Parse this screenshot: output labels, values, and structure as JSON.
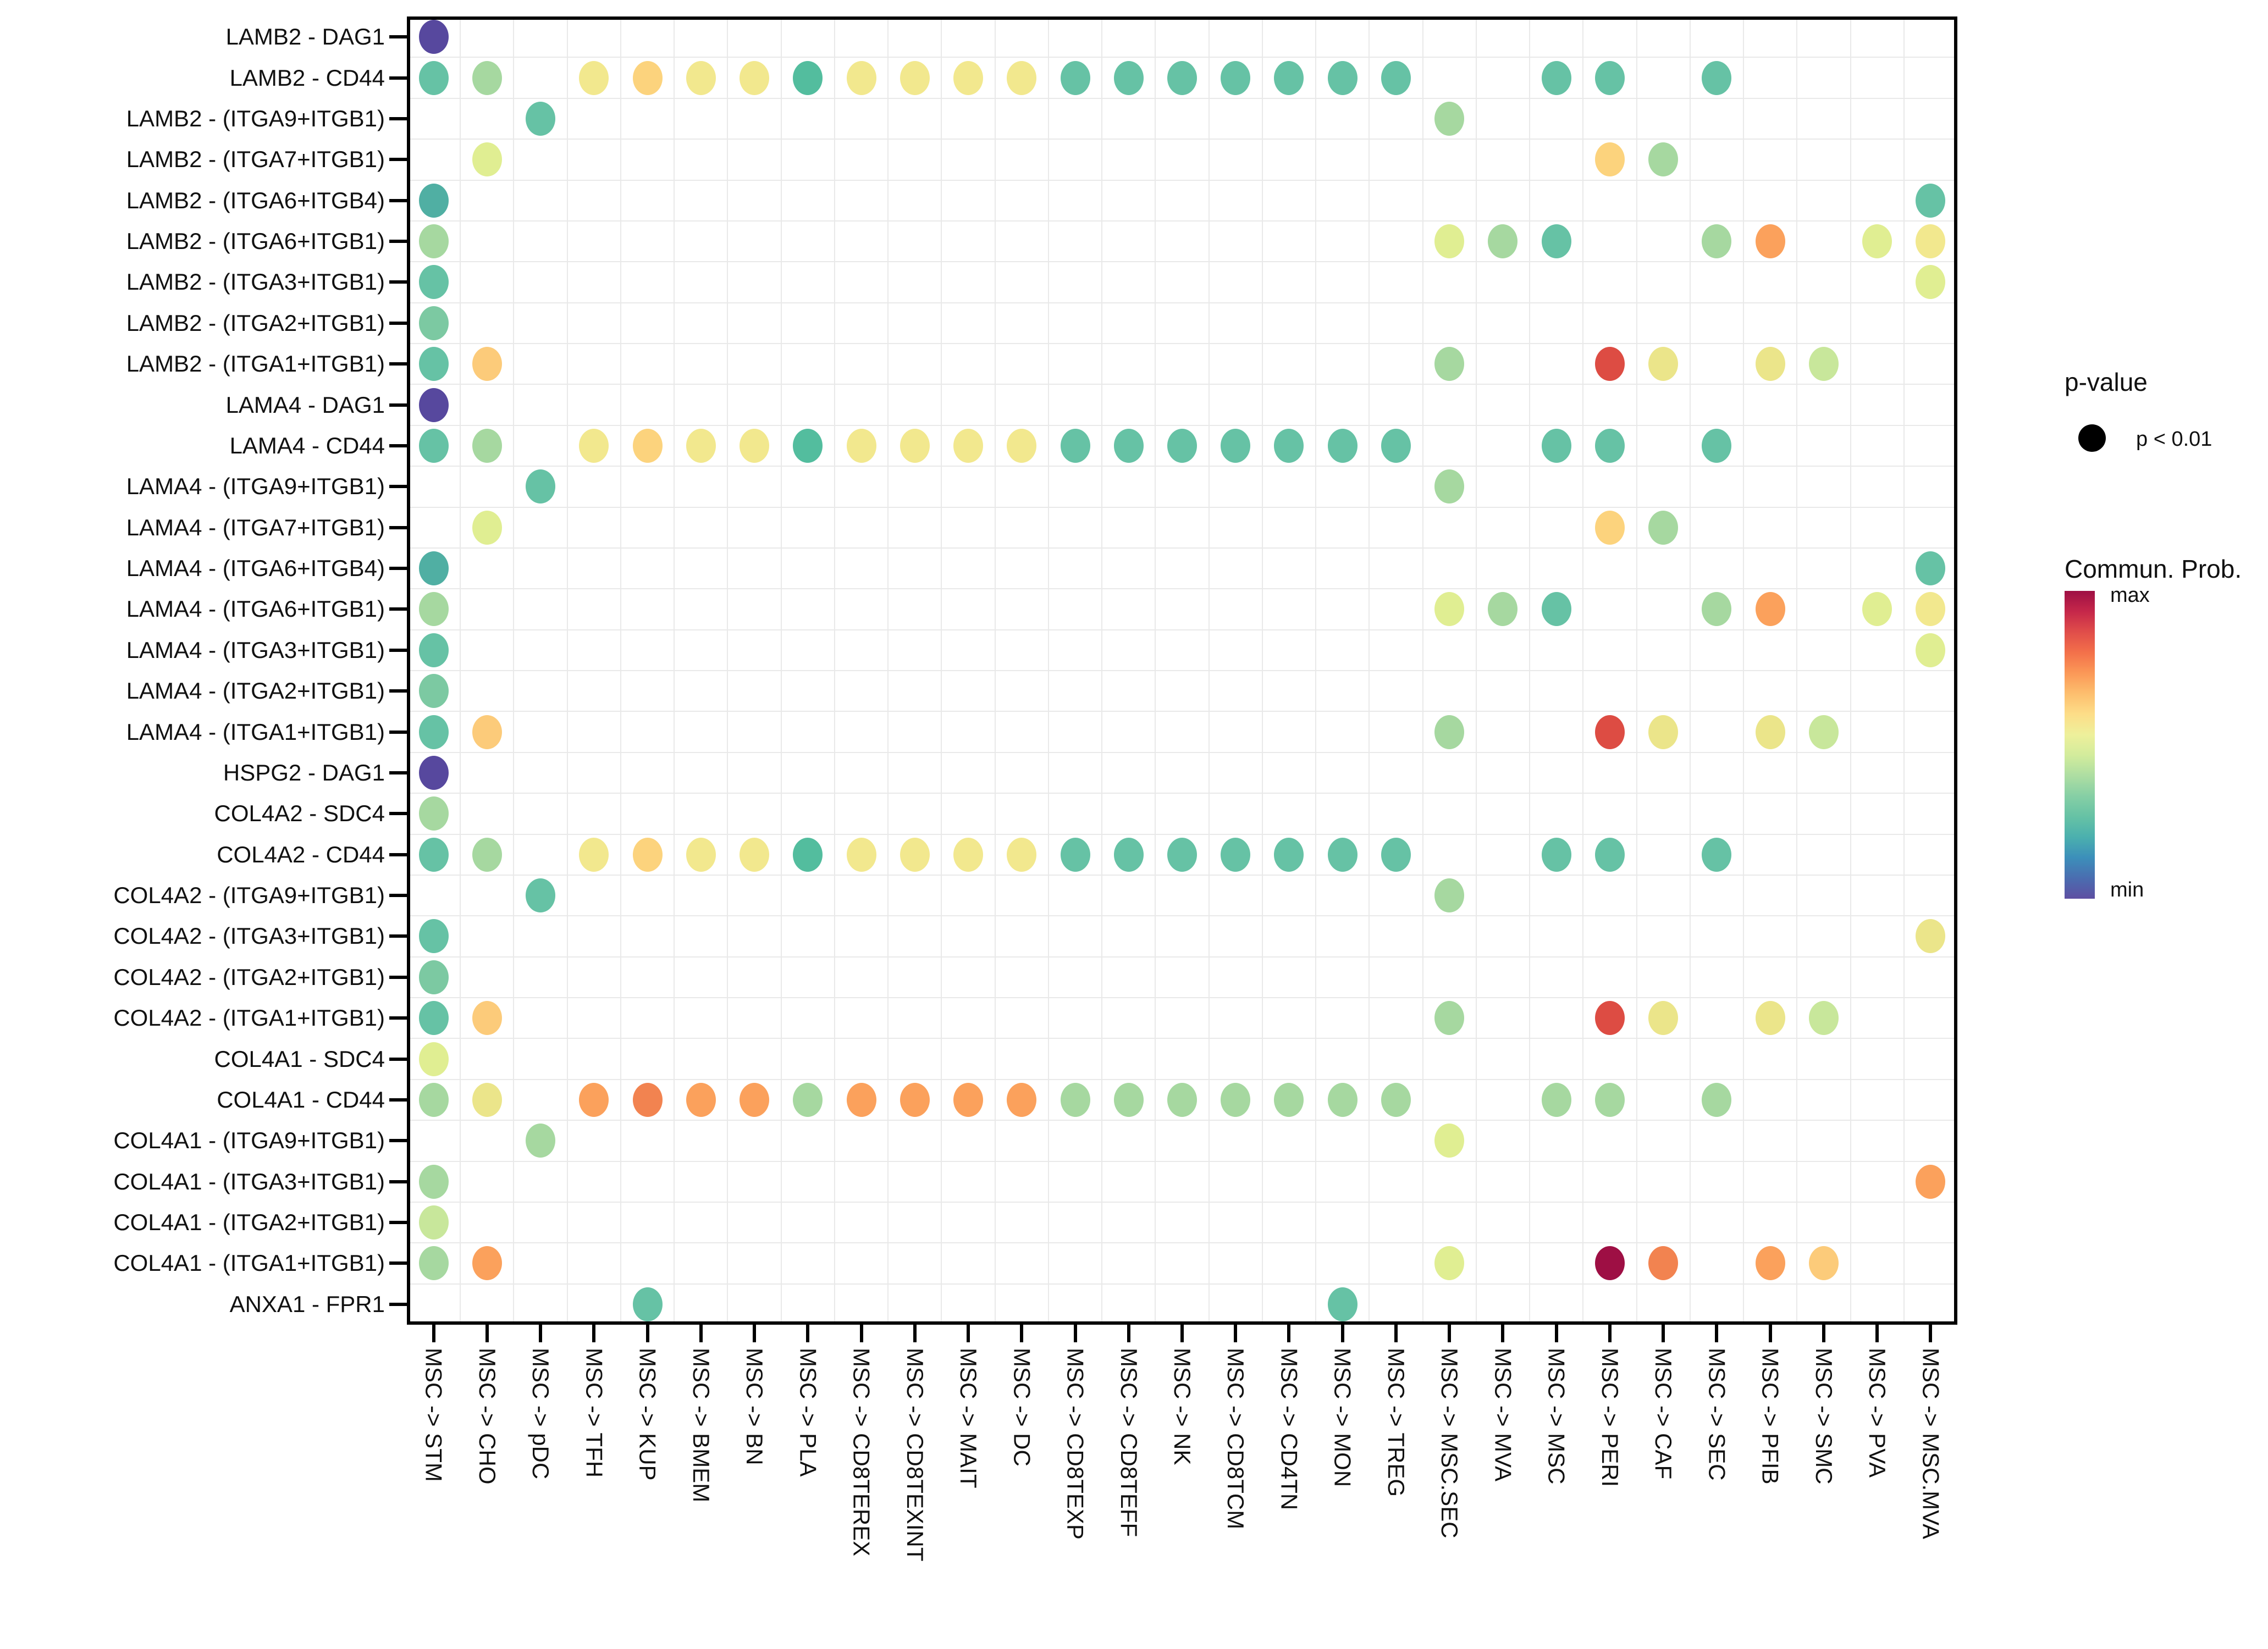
{
  "chart_data": {
    "type": "scatter",
    "subtype": "ligand-receptor-dot-plot",
    "title": "",
    "grid": "on",
    "legend_position": "right",
    "y_axis": {
      "labels": [
        "LAMB2 - DAG1",
        "LAMB2 - CD44",
        "LAMB2 - (ITGA9+ITGB1)",
        "LAMB2 - (ITGA7+ITGB1)",
        "LAMB2 - (ITGA6+ITGB4)",
        "LAMB2 - (ITGA6+ITGB1)",
        "LAMB2 - (ITGA3+ITGB1)",
        "LAMB2 - (ITGA2+ITGB1)",
        "LAMB2 - (ITGA1+ITGB1)",
        "LAMA4 - DAG1",
        "LAMA4 - CD44",
        "LAMA4 - (ITGA9+ITGB1)",
        "LAMA4 - (ITGA7+ITGB1)",
        "LAMA4 - (ITGA6+ITGB4)",
        "LAMA4 - (ITGA6+ITGB1)",
        "LAMA4 - (ITGA3+ITGB1)",
        "LAMA4 - (ITGA2+ITGB1)",
        "LAMA4 - (ITGA1+ITGB1)",
        "HSPG2 - DAG1",
        "COL4A2 - SDC4",
        "COL4A2 - CD44",
        "COL4A2 - (ITGA9+ITGB1)",
        "COL4A2 - (ITGA3+ITGB1)",
        "COL4A2 - (ITGA2+ITGB1)",
        "COL4A2 - (ITGA1+ITGB1)",
        "COL4A1 - SDC4",
        "COL4A1 - CD44",
        "COL4A1 - (ITGA9+ITGB1)",
        "COL4A1 - (ITGA3+ITGB1)",
        "COL4A1 - (ITGA2+ITGB1)",
        "COL4A1 - (ITGA1+ITGB1)",
        "ANXA1 - FPR1"
      ]
    },
    "x_axis": {
      "labels": [
        "MSC -> STM",
        "MSC -> CHO",
        "MSC -> pDC",
        "MSC -> TFH",
        "MSC -> KUP",
        "MSC -> BMEM",
        "MSC -> BN",
        "MSC -> PLA",
        "MSC -> CD8TEREX",
        "MSC -> CD8TEXINT",
        "MSC -> MAIT",
        "MSC -> DC",
        "MSC -> CD8TEXP",
        "MSC -> CD8TEFF",
        "MSC -> NK",
        "MSC -> CD8TCM",
        "MSC -> CD4TN",
        "MSC -> MON",
        "MSC -> TREG",
        "MSC -> MSC.SEC",
        "MSC -> MVA",
        "MSC -> MSC",
        "MSC -> PERI",
        "MSC -> CAF",
        "MSC -> SEC",
        "MSC -> PFIB",
        "MSC -> SMC",
        "MSC -> PVA",
        "MSC -> MSC.MVA"
      ]
    },
    "legend": {
      "pvalue_title": "p-value",
      "pvalue_item": "p < 0.01",
      "colorbar_title": "Commun. Prob.",
      "colorbar_max": "max",
      "colorbar_min": "min",
      "colorbar_gradient": [
        "#9e0f44",
        "#c5274a",
        "#e04d4a",
        "#f3704a",
        "#fb9857",
        "#fdbe6e",
        "#fddd88",
        "#eef09b",
        "#d3ec9c",
        "#aedea2",
        "#86cfa5",
        "#66c2a5",
        "#4bb0ae",
        "#3c8fba",
        "#4a6db0",
        "#5e4fa2"
      ]
    },
    "dot_colors": {
      "purple": "#57489e",
      "teal": "#66c2a5",
      "tealDark": "#50afa3",
      "tealMed": "#53bd9e",
      "green": "#a6d8a0",
      "green2": "#7cc9a2",
      "limeGreen": "#c8e79b",
      "yellowGreen": "#e0ee92",
      "paleYellow": "#f2e88e",
      "yellow": "#ebe58a",
      "orangeYellow": "#fcd37d",
      "orangeYellow2": "#fccb7a",
      "orange": "#fba15c",
      "orangeDark": "#f28350",
      "red": "#dd4c43",
      "crimson": "#9e0f44"
    },
    "points": [
      [
        0,
        0,
        "purple"
      ],
      [
        1,
        0,
        "teal"
      ],
      [
        1,
        1,
        "green"
      ],
      [
        1,
        3,
        "paleYellow"
      ],
      [
        1,
        4,
        "orangeYellow"
      ],
      [
        1,
        5,
        "paleYellow"
      ],
      [
        1,
        6,
        "paleYellow"
      ],
      [
        1,
        7,
        "tealMed"
      ],
      [
        1,
        8,
        "paleYellow"
      ],
      [
        1,
        9,
        "paleYellow"
      ],
      [
        1,
        10,
        "paleYellow"
      ],
      [
        1,
        11,
        "paleYellow"
      ],
      [
        1,
        12,
        "teal"
      ],
      [
        1,
        13,
        "teal"
      ],
      [
        1,
        14,
        "teal"
      ],
      [
        1,
        15,
        "teal"
      ],
      [
        1,
        16,
        "teal"
      ],
      [
        1,
        17,
        "teal"
      ],
      [
        1,
        18,
        "teal"
      ],
      [
        1,
        21,
        "teal"
      ],
      [
        1,
        22,
        "teal"
      ],
      [
        1,
        24,
        "teal"
      ],
      [
        2,
        2,
        "teal"
      ],
      [
        2,
        19,
        "green"
      ],
      [
        3,
        1,
        "yellowGreen"
      ],
      [
        3,
        22,
        "orangeYellow"
      ],
      [
        3,
        23,
        "green"
      ],
      [
        4,
        0,
        "tealDark"
      ],
      [
        4,
        28,
        "teal"
      ],
      [
        5,
        0,
        "green"
      ],
      [
        5,
        19,
        "yellowGreen"
      ],
      [
        5,
        20,
        "green"
      ],
      [
        5,
        21,
        "teal"
      ],
      [
        5,
        24,
        "green"
      ],
      [
        5,
        25,
        "orange"
      ],
      [
        5,
        27,
        "yellowGreen"
      ],
      [
        5,
        28,
        "paleYellow"
      ],
      [
        6,
        0,
        "teal"
      ],
      [
        6,
        28,
        "yellowGreen"
      ],
      [
        7,
        0,
        "green2"
      ],
      [
        8,
        0,
        "teal"
      ],
      [
        8,
        1,
        "orangeYellow2"
      ],
      [
        8,
        19,
        "green"
      ],
      [
        8,
        22,
        "red"
      ],
      [
        8,
        23,
        "yellow"
      ],
      [
        8,
        25,
        "yellow"
      ],
      [
        8,
        26,
        "limeGreen"
      ],
      [
        9,
        0,
        "purple"
      ],
      [
        10,
        0,
        "teal"
      ],
      [
        10,
        1,
        "green"
      ],
      [
        10,
        3,
        "paleYellow"
      ],
      [
        10,
        4,
        "orangeYellow"
      ],
      [
        10,
        5,
        "paleYellow"
      ],
      [
        10,
        6,
        "paleYellow"
      ],
      [
        10,
        7,
        "tealMed"
      ],
      [
        10,
        8,
        "paleYellow"
      ],
      [
        10,
        9,
        "paleYellow"
      ],
      [
        10,
        10,
        "paleYellow"
      ],
      [
        10,
        11,
        "paleYellow"
      ],
      [
        10,
        12,
        "teal"
      ],
      [
        10,
        13,
        "teal"
      ],
      [
        10,
        14,
        "teal"
      ],
      [
        10,
        15,
        "teal"
      ],
      [
        10,
        16,
        "teal"
      ],
      [
        10,
        17,
        "teal"
      ],
      [
        10,
        18,
        "teal"
      ],
      [
        10,
        21,
        "teal"
      ],
      [
        10,
        22,
        "teal"
      ],
      [
        10,
        24,
        "teal"
      ],
      [
        11,
        2,
        "teal"
      ],
      [
        11,
        19,
        "green"
      ],
      [
        12,
        1,
        "yellowGreen"
      ],
      [
        12,
        22,
        "orangeYellow"
      ],
      [
        12,
        23,
        "green"
      ],
      [
        13,
        0,
        "tealDark"
      ],
      [
        13,
        28,
        "teal"
      ],
      [
        14,
        0,
        "green"
      ],
      [
        14,
        19,
        "yellowGreen"
      ],
      [
        14,
        20,
        "green"
      ],
      [
        14,
        21,
        "teal"
      ],
      [
        14,
        24,
        "green"
      ],
      [
        14,
        25,
        "orange"
      ],
      [
        14,
        27,
        "yellowGreen"
      ],
      [
        14,
        28,
        "paleYellow"
      ],
      [
        15,
        0,
        "teal"
      ],
      [
        15,
        28,
        "yellowGreen"
      ],
      [
        16,
        0,
        "green2"
      ],
      [
        17,
        0,
        "teal"
      ],
      [
        17,
        1,
        "orangeYellow2"
      ],
      [
        17,
        19,
        "green"
      ],
      [
        17,
        22,
        "red"
      ],
      [
        17,
        23,
        "yellow"
      ],
      [
        17,
        25,
        "yellow"
      ],
      [
        17,
        26,
        "limeGreen"
      ],
      [
        18,
        0,
        "purple"
      ],
      [
        19,
        0,
        "green"
      ],
      [
        20,
        0,
        "teal"
      ],
      [
        20,
        1,
        "green"
      ],
      [
        20,
        3,
        "paleYellow"
      ],
      [
        20,
        4,
        "orangeYellow"
      ],
      [
        20,
        5,
        "paleYellow"
      ],
      [
        20,
        6,
        "paleYellow"
      ],
      [
        20,
        7,
        "tealMed"
      ],
      [
        20,
        8,
        "paleYellow"
      ],
      [
        20,
        9,
        "paleYellow"
      ],
      [
        20,
        10,
        "paleYellow"
      ],
      [
        20,
        11,
        "paleYellow"
      ],
      [
        20,
        12,
        "teal"
      ],
      [
        20,
        13,
        "teal"
      ],
      [
        20,
        14,
        "teal"
      ],
      [
        20,
        15,
        "teal"
      ],
      [
        20,
        16,
        "teal"
      ],
      [
        20,
        17,
        "teal"
      ],
      [
        20,
        18,
        "teal"
      ],
      [
        20,
        21,
        "teal"
      ],
      [
        20,
        22,
        "teal"
      ],
      [
        20,
        24,
        "teal"
      ],
      [
        21,
        2,
        "teal"
      ],
      [
        21,
        19,
        "green"
      ],
      [
        22,
        0,
        "teal"
      ],
      [
        22,
        28,
        "yellow"
      ],
      [
        23,
        0,
        "green2"
      ],
      [
        24,
        0,
        "teal"
      ],
      [
        24,
        1,
        "orangeYellow2"
      ],
      [
        24,
        19,
        "green"
      ],
      [
        24,
        22,
        "red"
      ],
      [
        24,
        23,
        "yellow"
      ],
      [
        24,
        25,
        "yellow"
      ],
      [
        24,
        26,
        "limeGreen"
      ],
      [
        25,
        0,
        "yellowGreen"
      ],
      [
        26,
        0,
        "green"
      ],
      [
        26,
        1,
        "yellow"
      ],
      [
        26,
        3,
        "orange"
      ],
      [
        26,
        4,
        "orangeDark"
      ],
      [
        26,
        5,
        "orange"
      ],
      [
        26,
        6,
        "orange"
      ],
      [
        26,
        7,
        "green"
      ],
      [
        26,
        8,
        "orange"
      ],
      [
        26,
        9,
        "orange"
      ],
      [
        26,
        10,
        "orange"
      ],
      [
        26,
        11,
        "orange"
      ],
      [
        26,
        12,
        "green"
      ],
      [
        26,
        13,
        "green"
      ],
      [
        26,
        14,
        "green"
      ],
      [
        26,
        15,
        "green"
      ],
      [
        26,
        16,
        "green"
      ],
      [
        26,
        17,
        "green"
      ],
      [
        26,
        18,
        "green"
      ],
      [
        26,
        21,
        "green"
      ],
      [
        26,
        22,
        "green"
      ],
      [
        26,
        24,
        "green"
      ],
      [
        27,
        2,
        "green"
      ],
      [
        27,
        19,
        "yellowGreen"
      ],
      [
        28,
        0,
        "green"
      ],
      [
        28,
        28,
        "orange"
      ],
      [
        29,
        0,
        "limeGreen"
      ],
      [
        30,
        0,
        "green"
      ],
      [
        30,
        1,
        "orange"
      ],
      [
        30,
        19,
        "yellowGreen"
      ],
      [
        30,
        22,
        "crimson"
      ],
      [
        30,
        23,
        "orangeDark"
      ],
      [
        30,
        25,
        "orange"
      ],
      [
        30,
        26,
        "orangeYellow2"
      ],
      [
        31,
        4,
        "teal"
      ],
      [
        31,
        17,
        "teal"
      ]
    ]
  }
}
